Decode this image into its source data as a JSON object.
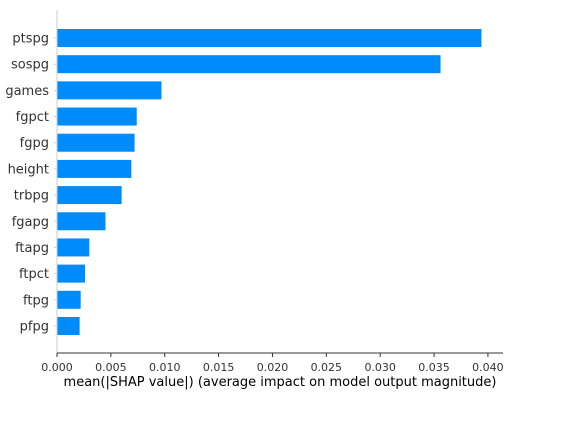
{
  "chart_data": {
    "type": "bar",
    "orientation": "horizontal",
    "categories": [
      "ptspg",
      "sospg",
      "games",
      "fgpct",
      "fgpg",
      "height",
      "trbpg",
      "fgapg",
      "ftapg",
      "ftpct",
      "ftpg",
      "pfpg"
    ],
    "values": [
      0.0394,
      0.0356,
      0.0097,
      0.0074,
      0.0072,
      0.0069,
      0.006,
      0.0045,
      0.003,
      0.0026,
      0.0022,
      0.0021
    ],
    "xticks": [
      0.0,
      0.005,
      0.01,
      0.015,
      0.02,
      0.025,
      0.03,
      0.035,
      0.04
    ],
    "xtick_labels": [
      "0.000",
      "0.005",
      "0.010",
      "0.015",
      "0.020",
      "0.025",
      "0.030",
      "0.035",
      "0.040"
    ],
    "xlim": [
      0,
      0.0414
    ],
    "xlabel": "mean(|SHAP value|) (average impact on model output magnitude)",
    "ylabel": "",
    "title": "",
    "grid": false,
    "legend": "none",
    "bar_color": "#008bfb",
    "axis_color": "#333333"
  }
}
